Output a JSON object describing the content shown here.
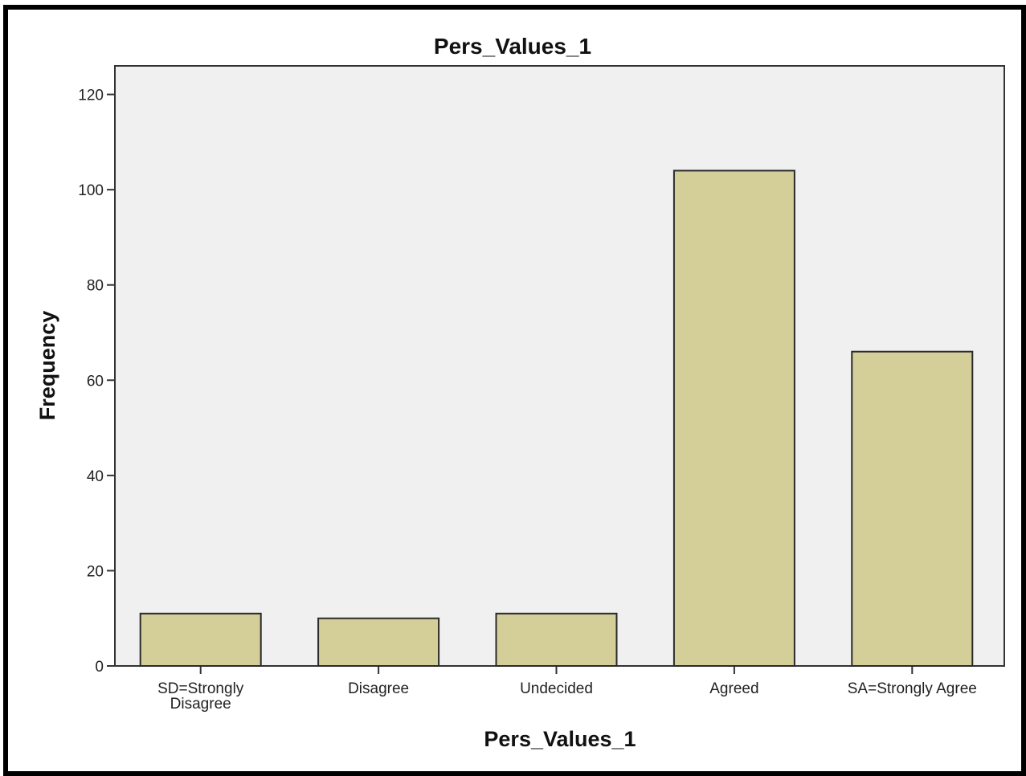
{
  "chart_data": {
    "type": "bar",
    "title": "Pers_Values_1",
    "xlabel": "Pers_Values_1",
    "ylabel": "Frequency",
    "categories": [
      [
        "SD=Strongly",
        "Disagree"
      ],
      [
        "Disagree"
      ],
      [
        "Undecided"
      ],
      [
        "Agreed"
      ],
      [
        "SA=Strongly Agree"
      ]
    ],
    "values": [
      11,
      10,
      11,
      104,
      66
    ],
    "ylim": [
      0,
      126
    ],
    "yticks": [
      0,
      20,
      40,
      60,
      80,
      100,
      120
    ],
    "grid": false,
    "legend": "none",
    "colors": {
      "bar_fill": "#d4cf98",
      "bar_stroke": "#2a2a2a",
      "plot_background": "#f0f0f0",
      "axis": "#333333"
    }
  }
}
